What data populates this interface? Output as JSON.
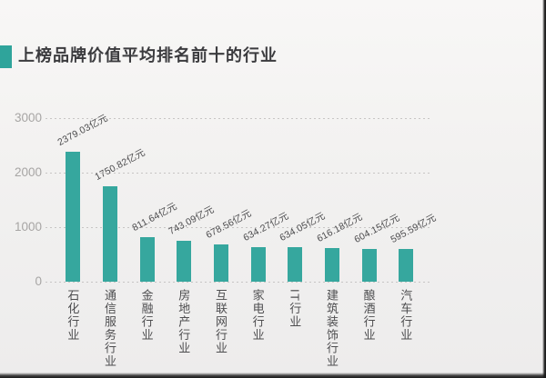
{
  "title": {
    "text": "上榜品牌价值平均排名前十的行业"
  },
  "colors": {
    "bar": "#36a79e",
    "accent": "#2fa49b",
    "title_text": "#3b3b3e",
    "axis_text": "#a7a5a4",
    "value_text": "#4b4b4d",
    "category_text": "#4e4e50",
    "gridline": "#c7c5c4",
    "background": "#f2f1f0"
  },
  "chart_data": {
    "type": "bar",
    "title": "上榜品牌价值平均排名前十的行业",
    "categories": [
      "石化行业",
      "通信服务行业",
      "金融行业",
      "房地产行业",
      "互联网行业",
      "家电行业",
      "IT行业",
      "建筑装饰行业",
      "酿酒行业",
      "汽车行业"
    ],
    "values": [
      2379.03,
      1750.82,
      811.64,
      743.09,
      678.56,
      634.27,
      634.05,
      616.18,
      604.15,
      595.59
    ],
    "value_labels": [
      "2379.03亿元",
      "1750.82亿元",
      "811.64亿元",
      "743.09亿元",
      "678.56亿元",
      "634.27亿元",
      "634.05亿元",
      "616.18亿元",
      "604.15亿元",
      "595.59亿元"
    ],
    "unit": "亿元",
    "xlabel": "",
    "ylabel": "",
    "yticks": [
      3000,
      2000,
      1000,
      0
    ],
    "ylim": [
      0,
      3000
    ],
    "grid": "horizontal-dashed",
    "legend": "none",
    "value_label_rotation_deg": -28,
    "category_label_orientation": "vertical"
  }
}
